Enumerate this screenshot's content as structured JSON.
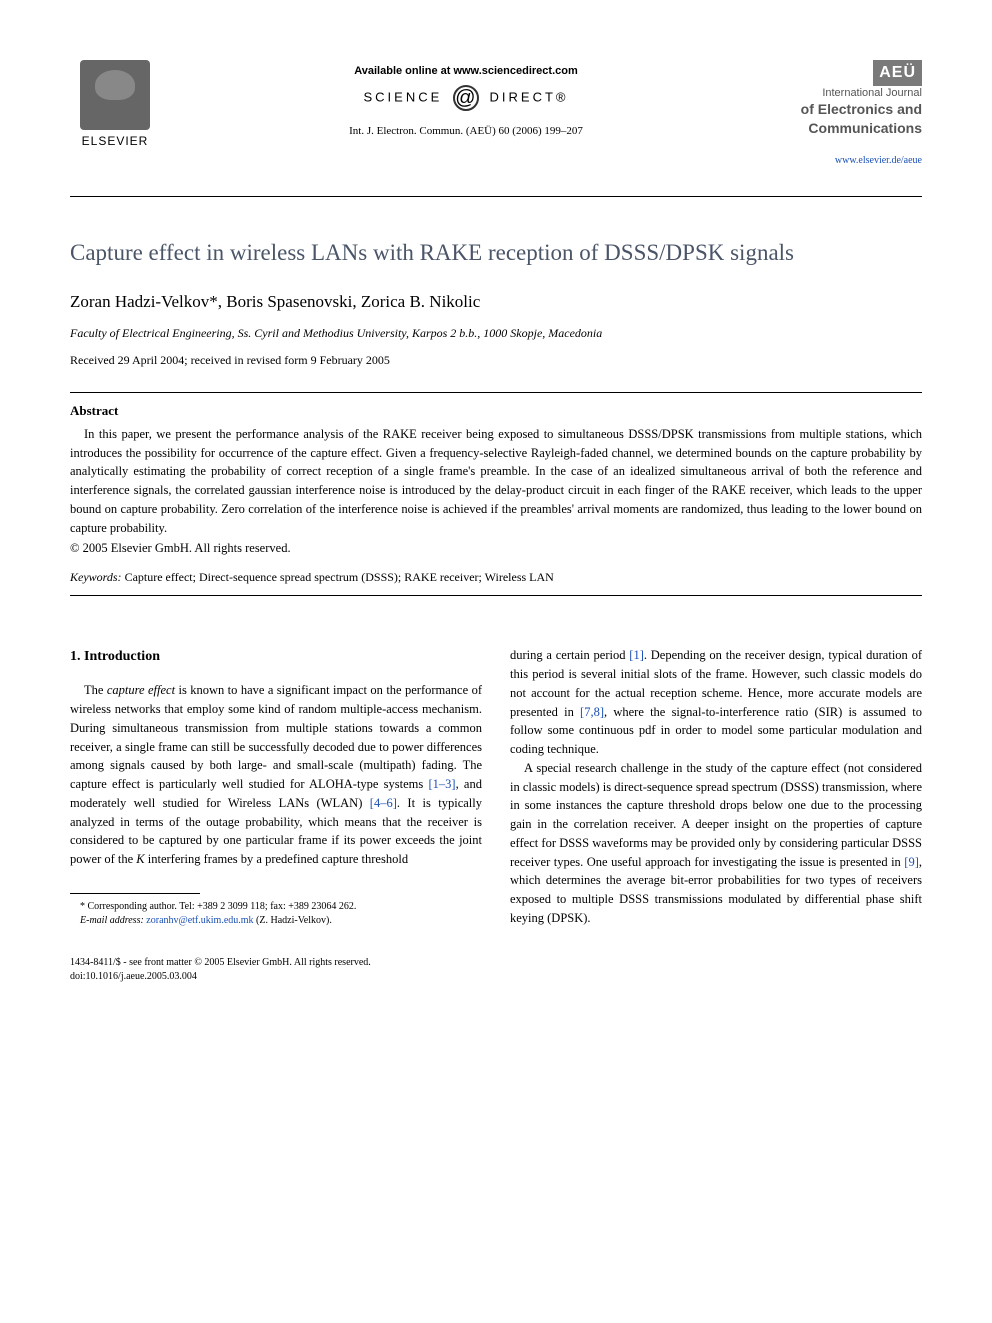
{
  "header": {
    "elsevier_label": "ELSEVIER",
    "available_online": "Available online at www.sciencedirect.com",
    "science_direct_left": "SCIENCE",
    "science_direct_right": "DIRECT®",
    "citation": "Int. J. Electron. Commun. (AEÜ) 60 (2006) 199–207",
    "aeu": "AEÜ",
    "journal_line1": "International Journal",
    "journal_line2": "of Electronics and",
    "journal_line3": "Communications",
    "journal_url": "www.elsevier.de/aeue"
  },
  "paper": {
    "title": "Capture effect in wireless LANs with RAKE reception of DSSS/DPSK signals",
    "authors": "Zoran Hadzi-Velkov*, Boris Spasenovski, Zorica B. Nikolic",
    "affiliation": "Faculty of Electrical Engineering, Ss. Cyril and Methodius University, Karpos 2 b.b., 1000 Skopje, Macedonia",
    "dates": "Received 29 April 2004; received in revised form 9 February 2005",
    "abstract_heading": "Abstract",
    "abstract_body": "In this paper, we present the performance analysis of the RAKE receiver being exposed to simultaneous DSSS/DPSK transmissions from multiple stations, which introduces the possibility for occurrence of the capture effect. Given a frequency-selective Rayleigh-faded channel, we determined bounds on the capture probability by analytically estimating the probability of correct reception of a single frame's preamble. In the case of an idealized simultaneous arrival of both the reference and interference signals, the correlated gaussian interference noise is introduced by the delay-product circuit in each finger of the RAKE receiver, which leads to the upper bound on capture probability. Zero correlation of the interference noise is achieved if the preambles' arrival moments are randomized, thus leading to the lower bound on capture probability.",
    "copyright": "© 2005 Elsevier GmbH. All rights reserved.",
    "keywords_label": "Keywords:",
    "keywords": " Capture effect; Direct-sequence spread spectrum (DSSS); RAKE receiver; Wireless LAN"
  },
  "body": {
    "section1_heading": "1. Introduction",
    "col1_p1_a": "The ",
    "col1_p1_italic": "capture effect",
    "col1_p1_b": " is known to have a significant impact on the performance of wireless networks that employ some kind of random multiple-access mechanism. During simultaneous transmission from multiple stations towards a common receiver, a single frame can still be successfully decoded due to power differences among signals caused by both large- and small-scale (multipath) fading. The capture effect is particularly well studied for ALOHA-type systems ",
    "col1_ref1": "[1–3]",
    "col1_p1_c": ", and moderately well studied for Wireless LANs (WLAN) ",
    "col1_ref2": "[4–6]",
    "col1_p1_d": ". It is typically analyzed in terms of the outage probability, which means that the receiver is considered to be captured by one particular frame if its power exceeds the joint power of the ",
    "col1_p1_K": "K",
    "col1_p1_e": " interfering frames by a predefined capture threshold",
    "col2_p1_a": "during a certain period ",
    "col2_ref1": "[1]",
    "col2_p1_b": ". Depending on the receiver design, typical duration of this period is several initial slots of the frame. However, such classic models do not account for the actual reception scheme. Hence, more accurate models are presented in ",
    "col2_ref2": "[7,8]",
    "col2_p1_c": ", where the signal-to-interference ratio (SIR) is assumed to follow some continuous pdf in order to model some particular modulation and coding technique.",
    "col2_p2_a": "A special research challenge in the study of the capture effect (not considered in classic models) is direct-sequence spread spectrum (DSSS) transmission, where in some instances the capture threshold drops below one due to the processing gain in the correlation receiver. A deeper insight on the properties of capture effect for DSSS waveforms may be provided only by considering particular DSSS receiver types. One useful approach for investigating the issue is presented in ",
    "col2_ref3": "[9]",
    "col2_p2_b": ", which determines the average bit-error probabilities for two types of receivers exposed to multiple DSSS transmissions modulated by differential phase shift keying (DPSK)."
  },
  "footnote": {
    "corresponding": "* Corresponding author. Tel: +389 2 3099 118; fax: +389 23064 262.",
    "email_label": "E-mail address:",
    "email": "zoranhv@etf.ukim.edu.mk",
    "email_author": " (Z. Hadzi-Velkov)."
  },
  "footer": {
    "line1": "1434-8411/$ - see front matter © 2005 Elsevier GmbH. All rights reserved.",
    "line2": "doi:10.1016/j.aeue.2005.03.004"
  },
  "colors": {
    "title_color": "#4a5568",
    "link_color": "#1a4fb5",
    "text_color": "#000000",
    "background": "#ffffff",
    "aeu_bg": "#7a7a7a"
  }
}
